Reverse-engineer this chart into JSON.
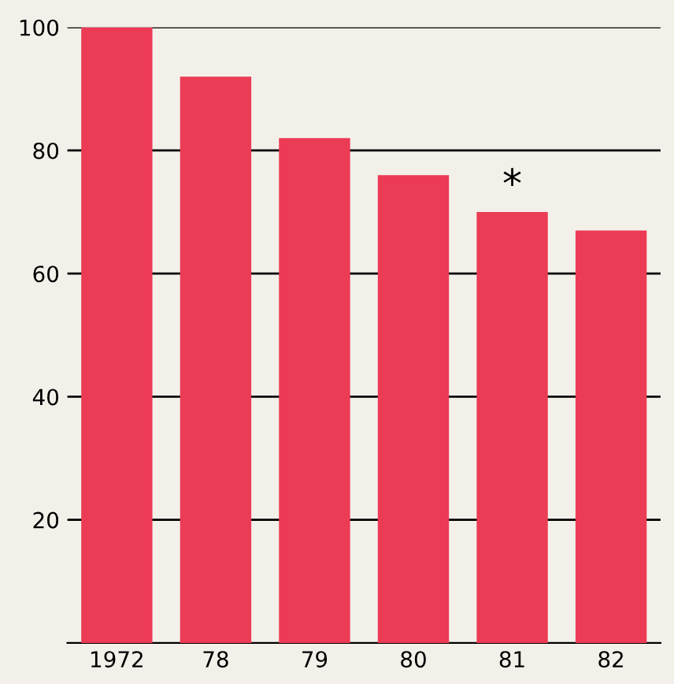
{
  "chart_data": {
    "type": "bar",
    "categories": [
      "1972",
      "78",
      "79",
      "80",
      "81",
      "82"
    ],
    "values": [
      100,
      92,
      82,
      76,
      70,
      67
    ],
    "color": "#ec3b55",
    "ylim": [
      0,
      100
    ],
    "yticks": [
      20,
      40,
      60,
      80,
      100
    ],
    "grid": "y",
    "annotations": [
      {
        "text": "*",
        "x": "81",
        "y": 70
      }
    ]
  }
}
